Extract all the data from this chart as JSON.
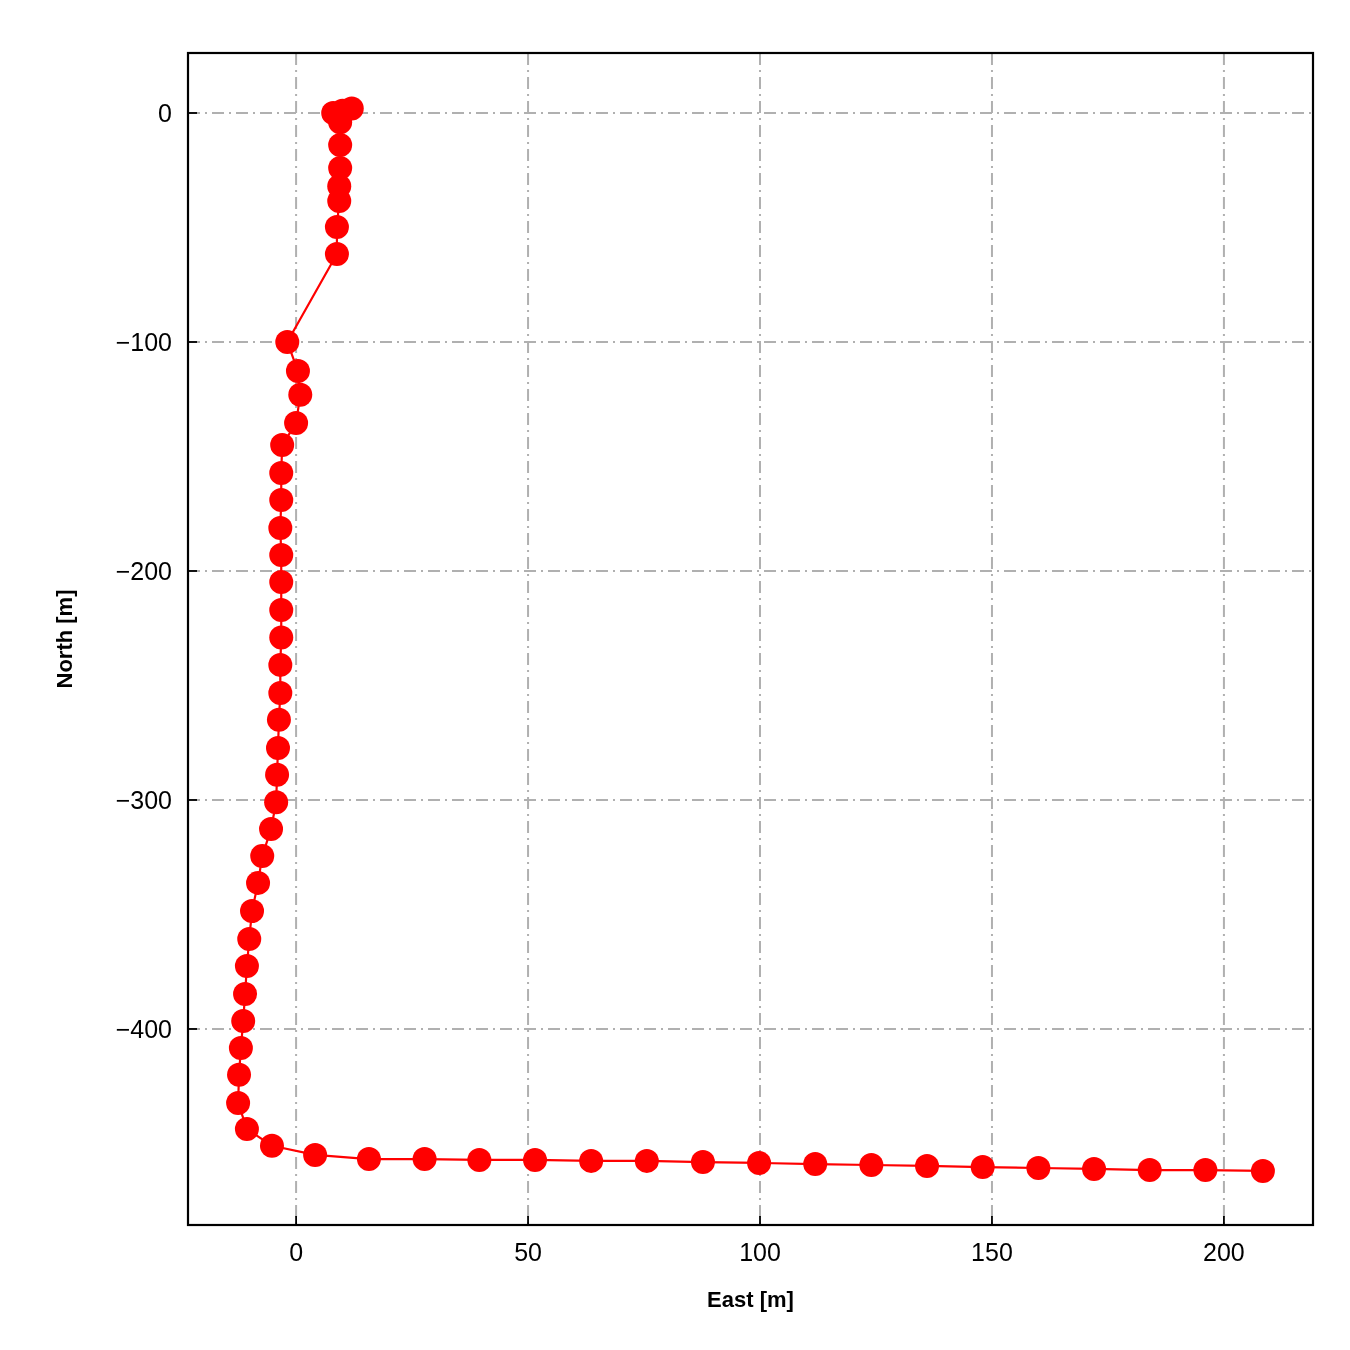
{
  "chart_data": {
    "type": "line",
    "xlabel": "East [m]",
    "ylabel": "North [m]",
    "xlim": [
      -23.3,
      219.2
    ],
    "ylim": [
      -485.6,
      26.2
    ],
    "xticks": [
      0,
      50,
      100,
      150,
      200
    ],
    "yticks": [
      -400,
      -300,
      -200,
      -100,
      0
    ],
    "grid": true,
    "marker": "circle",
    "line_style": "solid",
    "series": [
      {
        "color": "#ff0000",
        "x": [
          8,
          10,
          12,
          9.5,
          9.5,
          9.5,
          9.3,
          9.3,
          8.8,
          8.8,
          -1.9,
          0.4,
          0.9,
          0,
          -3,
          -3.2,
          -3.2,
          -3.4,
          -3.2,
          -3.2,
          -3.2,
          -3.2,
          -3.4,
          -3.4,
          -3.7,
          -3.9,
          -4.1,
          -4.3,
          -5.4,
          -7.3,
          -8.2,
          -9.5,
          -10.1,
          -10.6,
          -11,
          -11.4,
          -11.9,
          -12.3,
          -12.5,
          -10.6,
          -5.2,
          4.1,
          15.7,
          27.7,
          39.5,
          51.5,
          63.6,
          75.6,
          87.7,
          99.8,
          111.9,
          124,
          136,
          148,
          160,
          172,
          184,
          196,
          208.4
        ],
        "values": [
          0,
          1,
          2,
          -4,
          -14,
          -24,
          -32,
          -38.4,
          -49.8,
          -61.6,
          -100,
          -112.7,
          -123,
          -135.4,
          -145,
          -157.2,
          -169,
          -181.2,
          -193,
          -204.8,
          -217,
          -229,
          -241,
          -253.3,
          -265,
          -277.3,
          -289,
          -301,
          -312.7,
          -324.5,
          -336.2,
          -348.5,
          -360.7,
          -372.5,
          -384.7,
          -396.5,
          -408.3,
          -420,
          -432.3,
          -443.7,
          -451,
          -455,
          -456.8,
          -456.8,
          -457.2,
          -457.2,
          -457.6,
          -457.6,
          -458.1,
          -458.5,
          -459,
          -459.4,
          -459.8,
          -460.3,
          -460.7,
          -461.1,
          -461.6,
          -461.6,
          -462
        ]
      }
    ]
  }
}
